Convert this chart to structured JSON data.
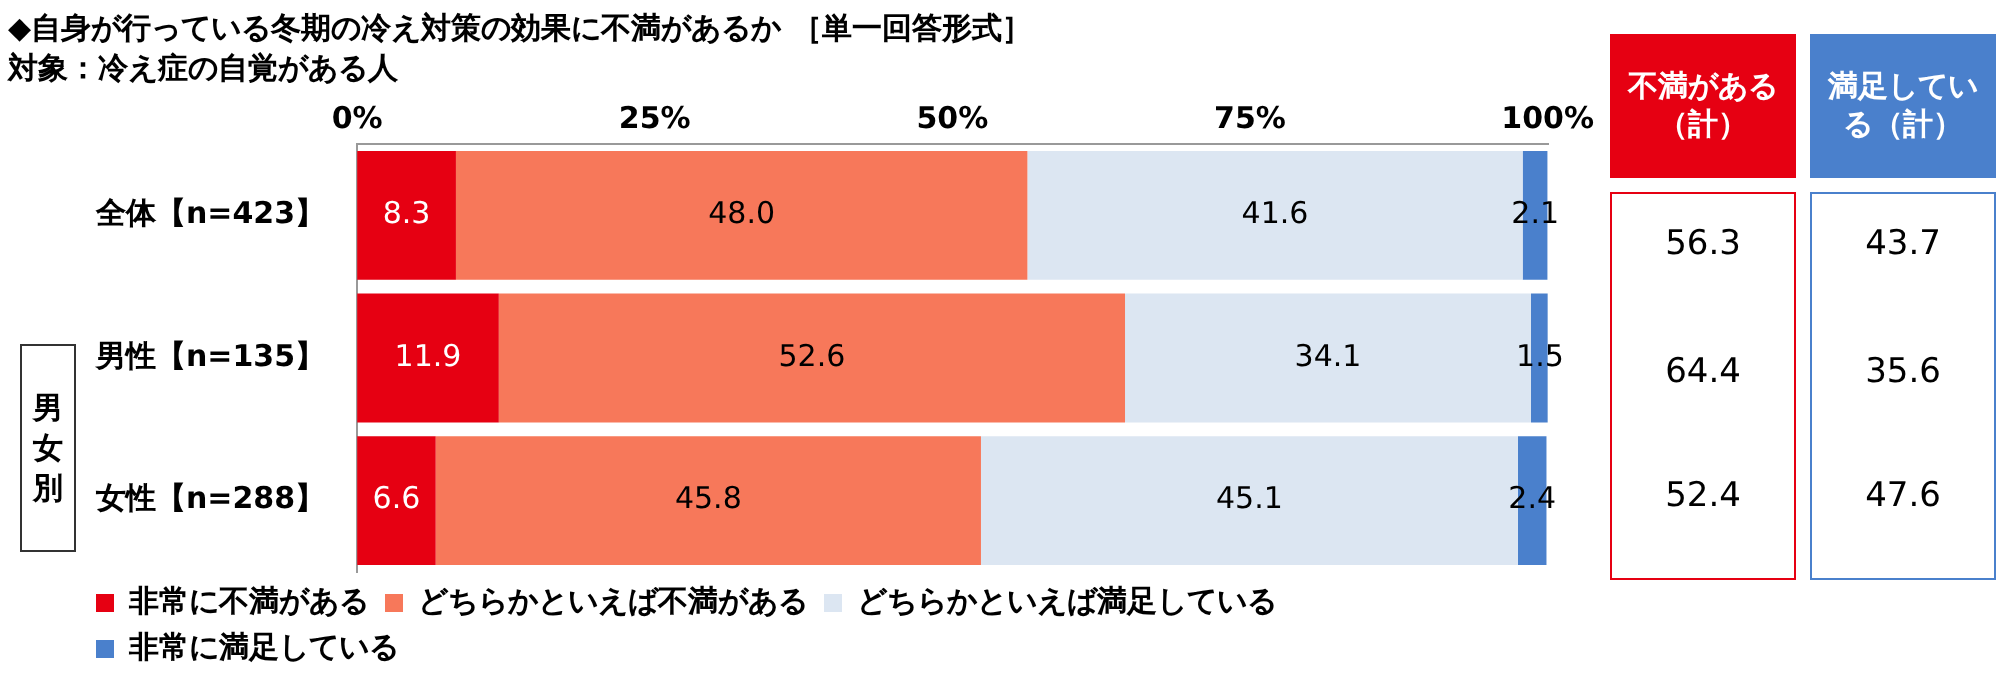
{
  "chart_data": {
    "type": "bar",
    "orientation": "horizontal",
    "stacked": true,
    "title": "◆自身が行っている冬期の冷え対策の効果に不満があるか ［単一回答形式］",
    "subtitle": "対象：冷え症の自覚がある人",
    "categories": [
      "全体【n=423】",
      "男性【n=135】",
      "女性【n=288】"
    ],
    "series": [
      {
        "name": "非常に不満がある",
        "color": "#e60012",
        "values": [
          8.3,
          11.9,
          6.6
        ],
        "value_labels": [
          "8.3",
          "11.9",
          "6.6"
        ]
      },
      {
        "name": "どちらかといえば不満がある",
        "color": "#f7785a",
        "values": [
          48.0,
          52.6,
          45.8
        ],
        "value_labels": [
          "48.0",
          "52.6",
          "45.8"
        ]
      },
      {
        "name": "どちらかといえば満足している",
        "color": "#dce6f2",
        "values": [
          41.6,
          34.1,
          45.1
        ],
        "value_labels": [
          "41.6",
          "34.1",
          "45.1"
        ]
      },
      {
        "name": "非常に満足している",
        "color": "#4a80cc",
        "values": [
          2.1,
          1.5,
          2.4
        ],
        "value_labels": [
          "2.1",
          "1.5",
          "2.4"
        ]
      }
    ],
    "xlim": [
      0,
      100
    ],
    "xticks": [
      {
        "value": 0,
        "label": "0%"
      },
      {
        "value": 25,
        "label": "25%"
      },
      {
        "value": 50,
        "label": "50%"
      },
      {
        "value": 75,
        "label": "75%"
      },
      {
        "value": 100,
        "label": "100%"
      }
    ],
    "grid": false,
    "legend": "bottom",
    "annotations": [
      "不満がある（計）",
      "満足している（計）",
      "56.3",
      "43.7",
      "64.4",
      "35.6",
      "52.4",
      "47.6",
      "男女別"
    ]
  }
}
